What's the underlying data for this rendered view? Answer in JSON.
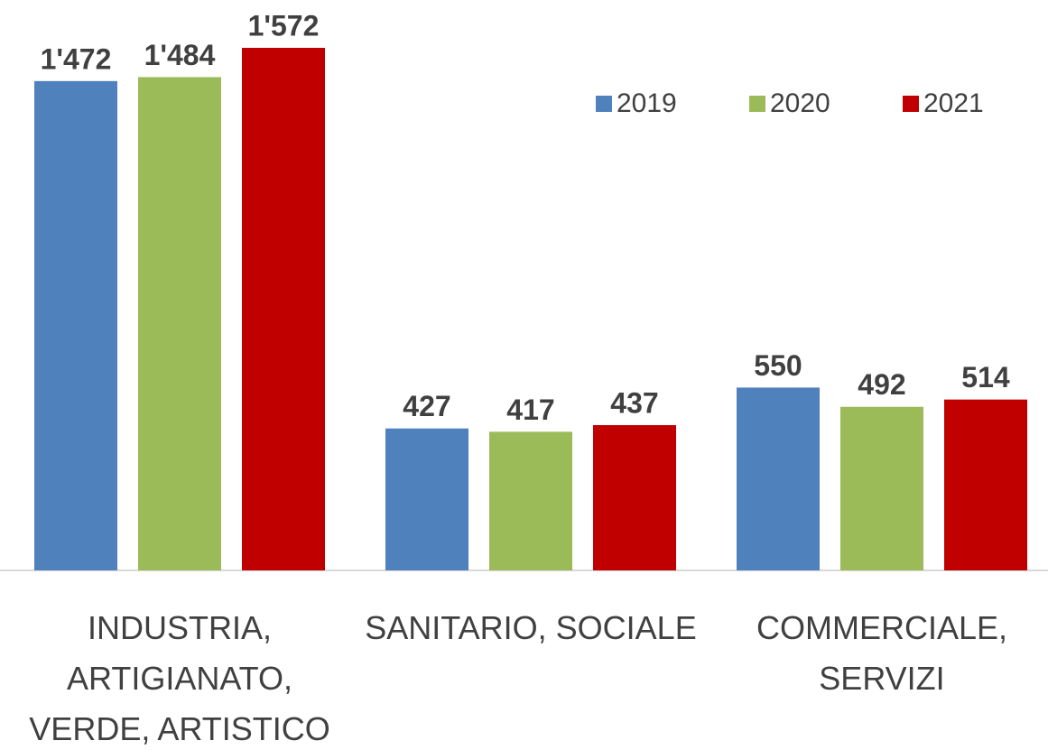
{
  "chart_data": {
    "type": "bar",
    "categories": [
      "INDUSTRIA, ARTIGIANATO, VERDE, ARTISTICO",
      "SANITARIO, SOCIALE",
      "COMMERCIALE, SERVIZI"
    ],
    "series": [
      {
        "name": "2019",
        "color": "#4f81bd",
        "values": [
          1472,
          427,
          550
        ],
        "value_labels": [
          "1'472",
          "427",
          "550"
        ]
      },
      {
        "name": "2020",
        "color": "#9bbb59",
        "values": [
          1484,
          417,
          492
        ],
        "value_labels": [
          "1'484",
          "417",
          "492"
        ]
      },
      {
        "name": "2021",
        "color": "#c00000",
        "values": [
          1572,
          437,
          514
        ],
        "value_labels": [
          "1'572",
          "437",
          "514"
        ]
      }
    ],
    "legend": "upper right"
  }
}
